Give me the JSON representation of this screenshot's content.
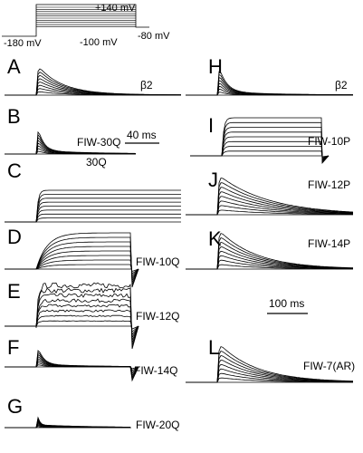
{
  "protocol": {
    "top": "+140 mV",
    "hold": "-180 mV",
    "step": "-100 mV",
    "tail": "-80 mV"
  },
  "panels": [
    {
      "letter": "A",
      "label": "β2"
    },
    {
      "letter": "B",
      "label": "FIW-30Q"
    },
    {
      "letter": "C",
      "label": "30Q"
    },
    {
      "letter": "D",
      "label": "FIW-10Q"
    },
    {
      "letter": "E",
      "label": "FIW-12Q"
    },
    {
      "letter": "F",
      "label": "FIW-14Q"
    },
    {
      "letter": "G",
      "label": "FIW-20Q"
    },
    {
      "letter": "H",
      "label": "β2"
    },
    {
      "letter": "I",
      "label": "FIW-10P"
    },
    {
      "letter": "J",
      "label": "FIW-12P"
    },
    {
      "letter": "K",
      "label": "FIW-14P"
    },
    {
      "letter": "L",
      "label": "FIW-7(AR)"
    }
  ],
  "scale_bars": [
    "40 ms",
    "100 ms"
  ]
}
